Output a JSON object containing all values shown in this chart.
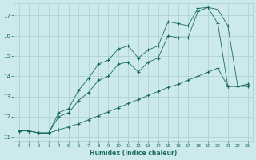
{
  "xlabel": "Humidex (Indice chaleur)",
  "ylabel": "",
  "background_color": "#cce9ec",
  "grid_color": "#aacdd2",
  "line_color": "#1a6b5e",
  "xlim": [
    -0.5,
    23.5
  ],
  "ylim": [
    10.8,
    17.6
  ],
  "yticks": [
    11,
    12,
    13,
    14,
    15,
    16,
    17
  ],
  "xticks": [
    0,
    1,
    2,
    3,
    4,
    5,
    6,
    7,
    8,
    9,
    10,
    11,
    12,
    13,
    14,
    15,
    16,
    17,
    18,
    19,
    20,
    21,
    22,
    23
  ],
  "line1_x": [
    0,
    1,
    2,
    3,
    4,
    5,
    6,
    7,
    8,
    9,
    10,
    11,
    12,
    13,
    14,
    15,
    16,
    17,
    18,
    19,
    20,
    21,
    22,
    23
  ],
  "line1_y": [
    11.3,
    11.3,
    11.2,
    11.2,
    11.35,
    11.5,
    11.65,
    11.85,
    12.05,
    12.25,
    12.45,
    12.65,
    12.85,
    13.05,
    13.25,
    13.45,
    13.6,
    13.8,
    14.0,
    14.2,
    14.4,
    13.5,
    13.5,
    13.6
  ],
  "line2_x": [
    0,
    1,
    2,
    3,
    4,
    5,
    6,
    7,
    8,
    9,
    10,
    11,
    12,
    13,
    14,
    15,
    16,
    17,
    18,
    19,
    20,
    21,
    22,
    23
  ],
  "line2_y": [
    11.3,
    11.3,
    11.2,
    11.2,
    12.2,
    12.4,
    13.3,
    13.9,
    14.6,
    14.8,
    15.35,
    15.5,
    14.9,
    15.3,
    15.5,
    16.7,
    16.6,
    16.5,
    17.35,
    17.4,
    17.3,
    16.5,
    13.5,
    13.5
  ],
  "line3_x": [
    0,
    1,
    2,
    3,
    4,
    5,
    6,
    7,
    8,
    9,
    10,
    11,
    12,
    13,
    14,
    15,
    16,
    17,
    18,
    19,
    20,
    21,
    22,
    23
  ],
  "line3_y": [
    11.3,
    11.3,
    11.2,
    11.2,
    12.0,
    12.2,
    12.8,
    13.2,
    13.8,
    14.0,
    14.6,
    14.7,
    14.2,
    14.7,
    14.9,
    16.0,
    15.9,
    15.9,
    17.2,
    17.4,
    16.6,
    13.5,
    13.5,
    13.6
  ]
}
